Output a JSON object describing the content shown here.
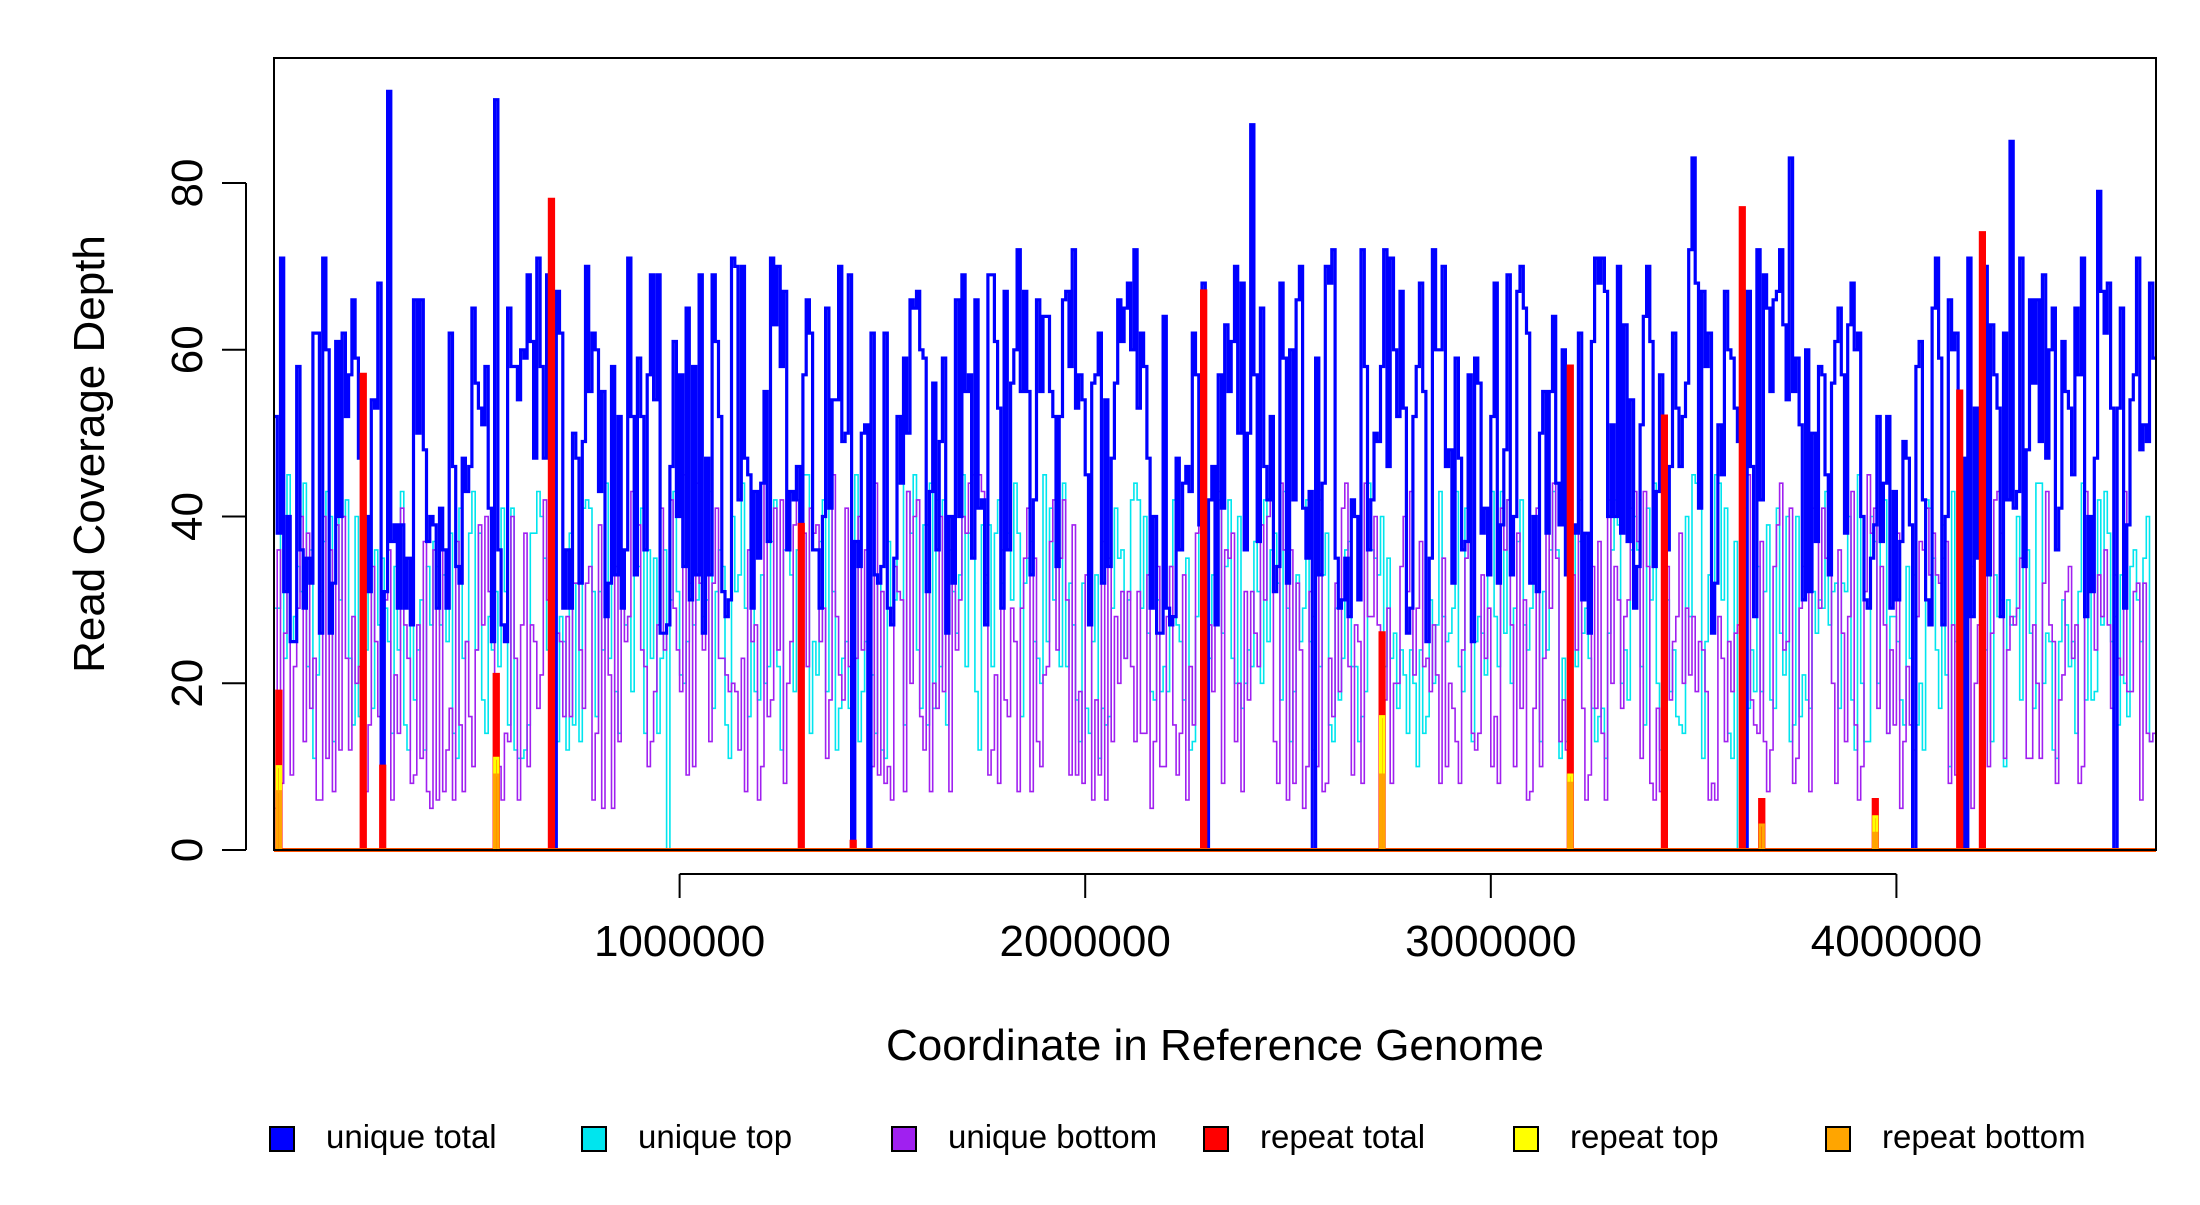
{
  "chart_data": {
    "type": "line",
    "style": "step",
    "xlabel": "Coordinate in Reference Genome",
    "ylabel": "Read Coverage Depth",
    "xlim": [
      0,
      4640000
    ],
    "ylim": [
      0,
      95
    ],
    "x_ticks": [
      1000000,
      2000000,
      3000000,
      4000000
    ],
    "x_tick_labels": [
      "1000000",
      "2000000",
      "3000000",
      "4000000"
    ],
    "y_ticks": [
      0,
      20,
      40,
      60,
      80
    ],
    "y_tick_labels": [
      "0",
      "20",
      "40",
      "60",
      "80"
    ],
    "grid": false,
    "legend_position": "bottom",
    "bin_width": 8000,
    "colors": {
      "unique_total": "#0000FF",
      "unique_top": "#00E5EE",
      "unique_bottom": "#A020F0",
      "repeat_total": "#FF0000",
      "repeat_top": "#FFFF00",
      "repeat_bottom": "#FFA500"
    },
    "series": [
      {
        "name": "unique total",
        "key": "unique_total",
        "profile": {
          "baseline_range": [
            25,
            72
          ],
          "peaks": [
            [
              280000,
              91
            ],
            [
              545000,
              90
            ],
            [
              2410000,
              87
            ],
            [
              4280000,
              85
            ],
            [
              3740000,
              83
            ],
            [
              3500000,
              83
            ],
            [
              4500000,
              79
            ]
          ],
          "dropouts_to_zero": [
            218000,
            265000,
            690000,
            1300000,
            1430000,
            1470000,
            2300000,
            2560000,
            3430000,
            3630000,
            4040000,
            4170000,
            4210000,
            4540000
          ]
        }
      },
      {
        "name": "unique top",
        "key": "unique_top",
        "profile": {
          "baseline_range": [
            10,
            45
          ],
          "dips_to_zero": [
            970000,
            3610000
          ]
        }
      },
      {
        "name": "unique bottom",
        "key": "unique_bottom",
        "profile": {
          "baseline_range": [
            5,
            45
          ]
        }
      },
      {
        "name": "repeat total",
        "key": "repeat_total",
        "spikes": [
          {
            "x": 8000,
            "y": 19
          },
          {
            "x": 220000,
            "y": 57
          },
          {
            "x": 268000,
            "y": 10
          },
          {
            "x": 545000,
            "y": 21
          },
          {
            "x": 686000,
            "y": 78
          },
          {
            "x": 1298000,
            "y": 39
          },
          {
            "x": 1426000,
            "y": 1
          },
          {
            "x": 2295000,
            "y": 67
          },
          {
            "x": 2735000,
            "y": 26
          },
          {
            "x": 3196000,
            "y": 58
          },
          {
            "x": 3427000,
            "y": 52
          },
          {
            "x": 3623000,
            "y": 77
          },
          {
            "x": 3669000,
            "y": 6
          },
          {
            "x": 3946000,
            "y": 6
          },
          {
            "x": 4156000,
            "y": 55
          },
          {
            "x": 4209000,
            "y": 74
          }
        ]
      },
      {
        "name": "repeat top",
        "key": "repeat_top",
        "spikes": [
          {
            "x": 8000,
            "y": 10
          },
          {
            "x": 545000,
            "y": 11
          },
          {
            "x": 2735000,
            "y": 16
          },
          {
            "x": 3196000,
            "y": 9
          },
          {
            "x": 3946000,
            "y": 4
          }
        ]
      },
      {
        "name": "repeat bottom",
        "key": "repeat_bottom",
        "spikes": [
          {
            "x": 8000,
            "y": 7
          },
          {
            "x": 545000,
            "y": 9
          },
          {
            "x": 2735000,
            "y": 9
          },
          {
            "x": 3196000,
            "y": 8
          },
          {
            "x": 3669000,
            "y": 3
          },
          {
            "x": 3946000,
            "y": 2
          }
        ]
      }
    ],
    "legend": [
      {
        "label": "unique total",
        "key": "unique_total"
      },
      {
        "label": "unique top",
        "key": "unique_top"
      },
      {
        "label": "unique bottom",
        "key": "unique_bottom"
      },
      {
        "label": "repeat total",
        "key": "repeat_total"
      },
      {
        "label": "repeat top",
        "key": "repeat_top"
      },
      {
        "label": "repeat bottom",
        "key": "repeat_bottom"
      }
    ]
  }
}
